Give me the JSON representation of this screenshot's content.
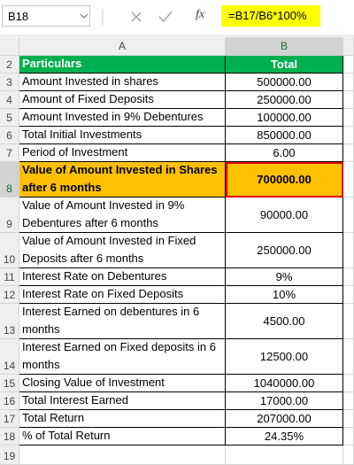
{
  "name_box": "B18",
  "function_icon": "fx",
  "formula": "=B17/B6*100%",
  "columns": [
    "A",
    "B"
  ],
  "rows": [
    {
      "number": 2,
      "a": "Particulars",
      "b": "Total"
    },
    {
      "number": 3,
      "a": "Amount Invested in shares",
      "b": "500000.00"
    },
    {
      "number": 4,
      "a": "Amount of Fixed Deposits",
      "b": "250000.00"
    },
    {
      "number": 5,
      "a": "Amount Invested in 9% Debentures",
      "b": "100000.00"
    },
    {
      "number": 6,
      "a": "Total Initial Investments",
      "b": "850000.00"
    },
    {
      "number": 7,
      "a": "Period of Investment",
      "b": "6.00"
    },
    {
      "number": 8,
      "a": "Value of Amount Invested in Shares after 6 months",
      "b": "700000.00"
    },
    {
      "number": 9,
      "a": "Value of Amount Invested in 9% Debentures after 6 months",
      "b": "90000.00"
    },
    {
      "number": 10,
      "a": "Value of Amount Invested in Fixed Deposits after 6 months",
      "b": "250000.00"
    },
    {
      "number": 11,
      "a": "Interest Rate on Debentures",
      "b": "9%"
    },
    {
      "number": 12,
      "a": "Interest Rate on Fixed Deposits",
      "b": "10%"
    },
    {
      "number": 13,
      "a": "Interest Earned on debentures in 6 months",
      "b": "4500.00"
    },
    {
      "number": 14,
      "a": "Interest Earned on Fixed deposits in 6 months",
      "b": "12500.00"
    },
    {
      "number": 15,
      "a": "Closing Value of Investment",
      "b": "1040000.00"
    },
    {
      "number": 16,
      "a": "Total Interest Earned",
      "b": "17000.00"
    },
    {
      "number": 17,
      "a": "Total Return",
      "b": "207000.00"
    },
    {
      "number": 18,
      "a": "% of Total Return",
      "b": "24.35%"
    },
    {
      "number": 19
    }
  ]
}
